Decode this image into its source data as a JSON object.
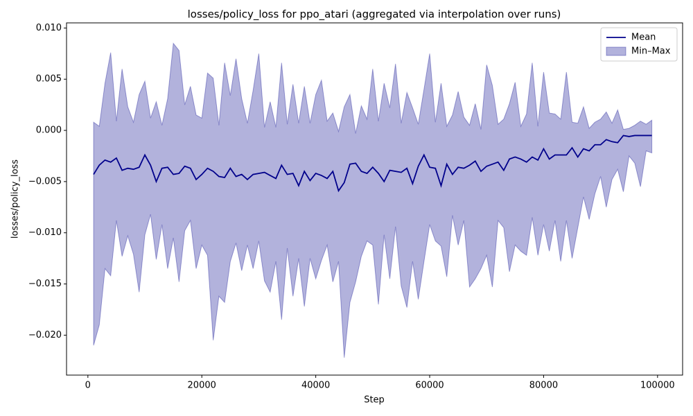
{
  "chart_data": {
    "type": "line",
    "title": "losses/policy_loss for ppo_atari (aggregated via interpolation over runs)",
    "xlabel": "Step",
    "ylabel": "losses/policy_loss",
    "xlim": [
      -3750,
      104400
    ],
    "ylim": [
      -0.0239,
      0.0105
    ],
    "xticks": [
      0,
      20000,
      40000,
      60000,
      80000,
      100000
    ],
    "yticks": [
      {
        "value": -0.02,
        "label": "−0.020"
      },
      {
        "value": -0.015,
        "label": "−0.015"
      },
      {
        "value": -0.01,
        "label": "−0.010"
      },
      {
        "value": -0.005,
        "label": "−0.005"
      },
      {
        "value": 0,
        "label": "0.000"
      },
      {
        "value": 0.005,
        "label": "0.005"
      },
      {
        "value": 0.01,
        "label": "0.010"
      }
    ],
    "legend": "upper right",
    "grid": false,
    "x": [
      1000,
      2000,
      3000,
      4000,
      5000,
      6000,
      7000,
      8000,
      9000,
      10000,
      11000,
      12000,
      13000,
      14000,
      15000,
      16000,
      17000,
      18000,
      19000,
      20000,
      21000,
      22000,
      23000,
      24000,
      25000,
      26000,
      27000,
      28000,
      29000,
      30000,
      31000,
      32000,
      33000,
      34000,
      35000,
      36000,
      37000,
      38000,
      39000,
      40000,
      41000,
      42000,
      43000,
      44000,
      45000,
      46000,
      47000,
      48000,
      49000,
      50000,
      51000,
      52000,
      53000,
      54000,
      55000,
      56000,
      57000,
      58000,
      59000,
      60000,
      61000,
      62000,
      63000,
      64000,
      65000,
      66000,
      67000,
      68000,
      69000,
      70000,
      71000,
      72000,
      73000,
      74000,
      75000,
      76000,
      77000,
      78000,
      79000,
      80000,
      81000,
      82000,
      83000,
      84000,
      85000,
      86000,
      87000,
      88000,
      89000,
      90000,
      91000,
      92000,
      93000,
      94000,
      95000,
      96000,
      97000,
      98000,
      99000
    ],
    "series": [
      {
        "name": "Mean",
        "kind": "line",
        "color": "#00008b",
        "values": [
          -0.0043,
          -0.0034,
          -0.0029,
          -0.0031,
          -0.0027,
          -0.0039,
          -0.0037,
          -0.0038,
          -0.0036,
          -0.0024,
          -0.0034,
          -0.005,
          -0.0037,
          -0.0036,
          -0.0043,
          -0.0042,
          -0.0035,
          -0.0037,
          -0.0048,
          -0.0043,
          -0.0037,
          -0.004,
          -0.0045,
          -0.0046,
          -0.0037,
          -0.0045,
          -0.0043,
          -0.0048,
          -0.0043,
          -0.0042,
          -0.0041,
          -0.0044,
          -0.0047,
          -0.0034,
          -0.0043,
          -0.0042,
          -0.0054,
          -0.004,
          -0.0049,
          -0.0042,
          -0.0044,
          -0.0047,
          -0.004,
          -0.0059,
          -0.0051,
          -0.0033,
          -0.0032,
          -0.004,
          -0.0042,
          -0.0036,
          -0.0042,
          -0.005,
          -0.0039,
          -0.004,
          -0.0041,
          -0.0037,
          -0.0052,
          -0.0035,
          -0.0024,
          -0.0036,
          -0.0037,
          -0.0054,
          -0.0033,
          -0.0043,
          -0.0036,
          -0.0037,
          -0.0034,
          -0.003,
          -0.004,
          -0.0035,
          -0.0033,
          -0.0031,
          -0.0039,
          -0.0028,
          -0.0026,
          -0.0028,
          -0.0031,
          -0.0026,
          -0.0029,
          -0.0018,
          -0.0028,
          -0.0024,
          -0.0024,
          -0.0024,
          -0.0017,
          -0.0026,
          -0.0018,
          -0.002,
          -0.0014,
          -0.0014,
          -0.0009,
          -0.0011,
          -0.0012,
          -0.0005,
          -0.0006,
          -0.0005,
          -0.0005,
          -0.0005,
          -0.0005
        ]
      },
      {
        "name": "Min–Max",
        "kind": "band",
        "color": "#00008b",
        "upper": [
          0.0008,
          0.0004,
          0.0046,
          0.0076,
          0.0009,
          0.006,
          0.0023,
          0.0008,
          0.0035,
          0.0048,
          0.0012,
          0.0028,
          0.0005,
          0.0031,
          0.0085,
          0.0078,
          0.0025,
          0.0043,
          0.0015,
          0.0012,
          0.0056,
          0.0051,
          0.0005,
          0.0066,
          0.0034,
          0.007,
          0.0031,
          0.0007,
          0.0039,
          0.0075,
          0.0003,
          0.0028,
          0.0003,
          0.0066,
          0.0006,
          0.0045,
          0.0007,
          0.0043,
          0.0007,
          0.0035,
          0.0049,
          0.0009,
          0.0017,
          -0.0001,
          0.0023,
          0.0035,
          -0.0003,
          0.0024,
          0.0011,
          0.006,
          0.0009,
          0.0046,
          0.0022,
          0.0065,
          0.0007,
          0.0037,
          0.0022,
          0.0006,
          0.004,
          0.0075,
          0.0008,
          0.0046,
          0.0004,
          0.0015,
          0.0038,
          0.0013,
          0.0005,
          0.0026,
          0.0001,
          0.0064,
          0.0044,
          0.0006,
          0.0011,
          0.0026,
          0.0047,
          0.0004,
          0.0016,
          0.0066,
          0.0004,
          0.0057,
          0.0017,
          0.0016,
          0.0011,
          0.0057,
          0.0008,
          0.0007,
          0.0023,
          0.0002,
          0.0008,
          0.0011,
          0.0018,
          0.0007,
          0.002,
          0.0001,
          0.0002,
          0.0005,
          0.0009,
          0.0006,
          0.001
        ],
        "lower": [
          -0.021,
          -0.019,
          -0.0135,
          -0.0142,
          -0.0088,
          -0.0123,
          -0.0103,
          -0.0121,
          -0.0158,
          -0.0102,
          -0.0082,
          -0.0126,
          -0.0092,
          -0.0135,
          -0.0105,
          -0.0148,
          -0.0098,
          -0.0088,
          -0.0135,
          -0.0112,
          -0.0122,
          -0.0205,
          -0.0162,
          -0.0168,
          -0.0128,
          -0.011,
          -0.0137,
          -0.0112,
          -0.0135,
          -0.0108,
          -0.0147,
          -0.0158,
          -0.0128,
          -0.0185,
          -0.0115,
          -0.0162,
          -0.0125,
          -0.0172,
          -0.0125,
          -0.0145,
          -0.0127,
          -0.0112,
          -0.0148,
          -0.0128,
          -0.0222,
          -0.0168,
          -0.0148,
          -0.0123,
          -0.0108,
          -0.0112,
          -0.017,
          -0.0102,
          -0.0145,
          -0.0094,
          -0.0152,
          -0.0173,
          -0.0128,
          -0.0165,
          -0.0128,
          -0.0092,
          -0.0108,
          -0.0113,
          -0.0143,
          -0.0083,
          -0.0112,
          -0.0088,
          -0.0153,
          -0.0145,
          -0.0135,
          -0.0122,
          -0.0153,
          -0.0088,
          -0.0095,
          -0.0138,
          -0.0112,
          -0.0118,
          -0.0122,
          -0.0085,
          -0.0122,
          -0.0092,
          -0.0118,
          -0.0088,
          -0.0128,
          -0.0088,
          -0.0125,
          -0.0095,
          -0.0065,
          -0.0087,
          -0.0062,
          -0.0045,
          -0.0075,
          -0.0048,
          -0.0038,
          -0.006,
          -0.0025,
          -0.0032,
          -0.0055,
          -0.002,
          -0.0022
        ]
      }
    ]
  }
}
